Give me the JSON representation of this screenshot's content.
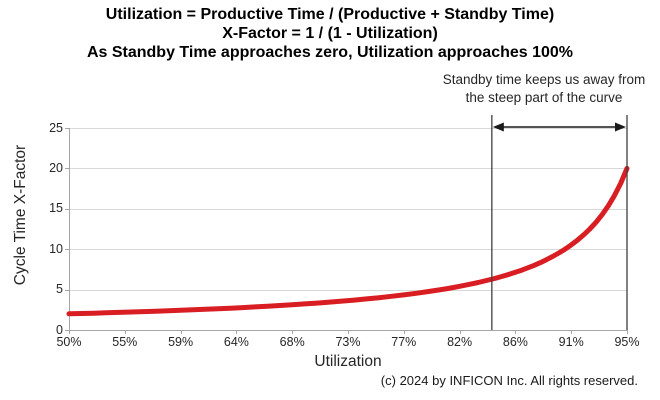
{
  "header": {
    "title_lines": [
      "Utilization = Productive Time / (Productive + Standby Time)",
      "X-Factor = 1 / (1 - Utilization)",
      "As Standby Time approaches zero, Utilization approaches 100%"
    ]
  },
  "annotation": {
    "lines": [
      "Standby time keeps us away from",
      "the steep part of the curve"
    ],
    "span_percent": [
      84.1,
      95
    ]
  },
  "footer": {
    "copyright": "(c) 2024 by INFICON Inc. All rights reserved."
  },
  "colors": {
    "curve": "#d91e23",
    "gridline": "#d9d9d9",
    "axis": "#a6a6a6",
    "annotation_line": "#3f3f3f",
    "arrow": "#1a1a1a",
    "tick_text": "#262626",
    "title_text": "#000000"
  },
  "chart_data": {
    "type": "line",
    "title": "",
    "xlabel": "Utilization",
    "ylabel": "Cycle Time X-Factor",
    "x_tick_labels": [
      "50%",
      "55%",
      "59%",
      "64%",
      "68%",
      "73%",
      "77%",
      "82%",
      "86%",
      "91%",
      "95%"
    ],
    "y_tick_labels": [
      "0",
      "5",
      "10",
      "15",
      "20",
      "25"
    ],
    "y_ticks": [
      0,
      5,
      10,
      15,
      20,
      25
    ],
    "xlim_percent": [
      50,
      95
    ],
    "ylim": [
      0,
      25
    ],
    "grid": "horizontal",
    "legend": "none",
    "series": [
      {
        "name": "Cycle Time X-Factor = 1 / (1 - Utilization)",
        "color": "#d91e23",
        "x_percent": [
          50,
          51,
          52,
          53,
          54,
          55,
          56,
          57,
          58,
          59,
          60,
          61,
          62,
          63,
          64,
          65,
          66,
          67,
          68,
          69,
          70,
          71,
          72,
          73,
          74,
          75,
          76,
          77,
          78,
          79,
          80,
          80.5,
          81,
          81.5,
          82,
          82.5,
          83,
          83.5,
          84,
          84.5,
          85,
          85.5,
          86,
          86.5,
          87,
          87.5,
          88,
          88.5,
          89,
          89.5,
          90,
          90.5,
          91,
          91.5,
          92,
          92.5,
          93,
          93.5,
          94,
          94.5,
          95
        ],
        "y": [
          2,
          2.041,
          2.083,
          2.128,
          2.174,
          2.222,
          2.273,
          2.326,
          2.381,
          2.439,
          2.5,
          2.564,
          2.632,
          2.703,
          2.778,
          2.857,
          2.941,
          3.03,
          3.125,
          3.226,
          3.333,
          3.448,
          3.571,
          3.704,
          3.846,
          4,
          4.167,
          4.348,
          4.545,
          4.762,
          5,
          5.128,
          5.263,
          5.405,
          5.556,
          5.714,
          5.882,
          6.061,
          6.25,
          6.452,
          6.667,
          6.897,
          7.143,
          7.407,
          7.692,
          8,
          8.333,
          8.696,
          9.091,
          9.524,
          10,
          10.526,
          11.111,
          11.765,
          12.5,
          13.333,
          14.286,
          15.385,
          16.667,
          18.182,
          20
        ]
      }
    ]
  }
}
